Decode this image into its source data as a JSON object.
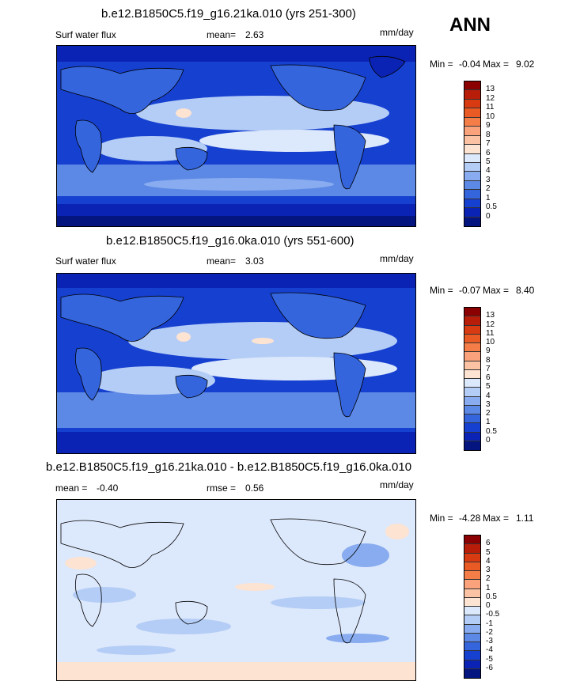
{
  "season": "ANN",
  "units": "mm/day",
  "panel1": {
    "title": "b.e12.B1850C5.f19_g16.21ka.010 (yrs 251-300)",
    "variable": "Surf water flux",
    "mean_label": "mean=",
    "mean_value": "2.63",
    "min_label": "Min =",
    "min_value": "-0.04",
    "max_label": "Max =",
    "max_value": "9.02"
  },
  "panel2": {
    "title": "b.e12.B1850C5.f19_g16.0ka.010 (yrs 551-600)",
    "variable": "Surf water flux",
    "mean_label": "mean=",
    "mean_value": "3.03",
    "min_label": "Min =",
    "min_value": "-0.07",
    "max_label": "Max =",
    "max_value": "8.40"
  },
  "panel3": {
    "title": "b.e12.B1850C5.f19_g16.21ka.010 - b.e12.B1850C5.f19_g16.0ka.010",
    "mean_label": "mean =",
    "mean_value": "-0.40",
    "rmse_label": "rmse =",
    "rmse_value": "0.56",
    "min_label": "Min =",
    "min_value": "-4.28",
    "max_label": "Max =",
    "max_value": "1.11"
  },
  "colorbar_abs": {
    "labels": [
      "13",
      "12",
      "11",
      "10",
      "9",
      "8",
      "7",
      "6",
      "5",
      "4",
      "3",
      "2",
      "1",
      "0.5",
      "0"
    ],
    "colors": [
      "#8b0000",
      "#b81d0a",
      "#d83a12",
      "#ea5a24",
      "#f57e48",
      "#f9a27c",
      "#fbc3a4",
      "#fde3d2",
      "#dce8fb",
      "#b4cdf6",
      "#88acef",
      "#5d89e6",
      "#3465dd",
      "#1640d0",
      "#0a23b4",
      "#051580"
    ]
  },
  "colorbar_diff": {
    "labels": [
      "6",
      "5",
      "4",
      "3",
      "2",
      "1",
      "0.5",
      "0",
      "-0.5",
      "-1",
      "-2",
      "-3",
      "-4",
      "-5",
      "-6"
    ],
    "colors": [
      "#8b0000",
      "#b81d0a",
      "#d83a12",
      "#ea5a24",
      "#f57e48",
      "#f9a27c",
      "#fbc3a4",
      "#fde3d2",
      "#dce8fb",
      "#b4cdf6",
      "#88acef",
      "#5d89e6",
      "#3465dd",
      "#1640d0",
      "#0a23b4",
      "#051580"
    ]
  }
}
